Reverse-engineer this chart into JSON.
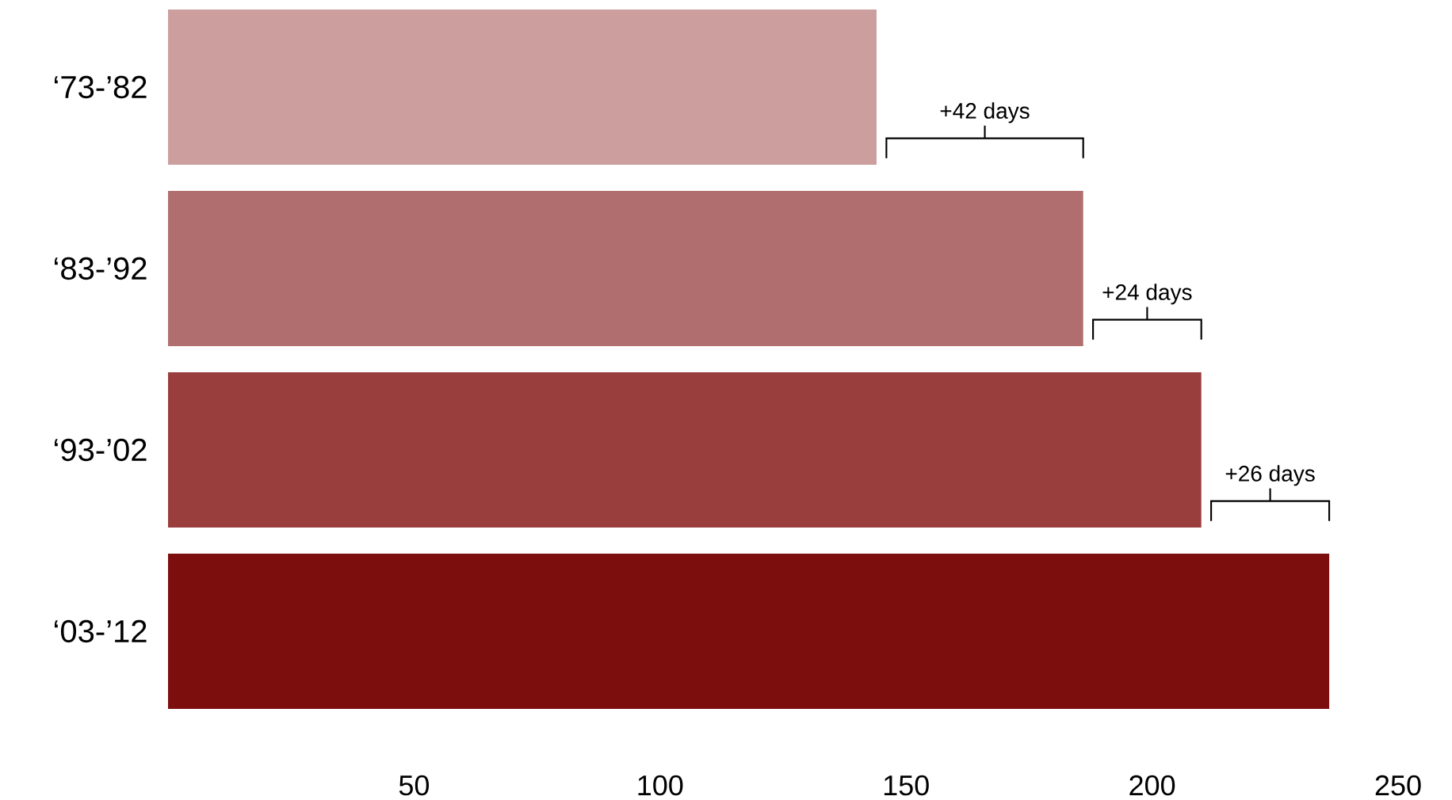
{
  "chart_data": {
    "type": "bar",
    "orientation": "horizontal",
    "categories": [
      "‘73-’82",
      "‘83-’92",
      "‘93-’02",
      "‘03-’12"
    ],
    "values": [
      144,
      186,
      210,
      236
    ],
    "colors": [
      "#cc9e9e",
      "#b06e6e",
      "#993d3d",
      "#7d0e0e"
    ],
    "xlim": [
      0,
      250
    ],
    "xticks": [
      50,
      100,
      150,
      200,
      250
    ],
    "annotations": [
      "+42 days",
      "+24 days",
      "+26 days"
    ]
  }
}
